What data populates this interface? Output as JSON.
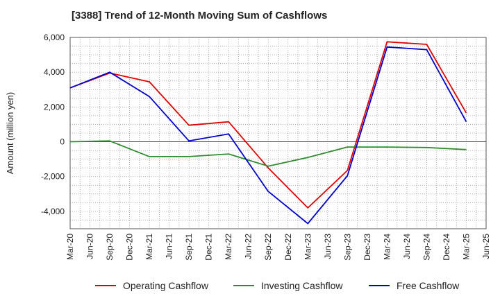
{
  "chart_data": {
    "type": "line",
    "title": "[3388]  Trend of 12-Month Moving Sum of Cashflows",
    "xlabel": "",
    "ylabel": "Amount (million yen)",
    "ylim": [
      -5000,
      6000
    ],
    "yticks": [
      -4000,
      -2000,
      0,
      2000,
      4000,
      6000
    ],
    "ytick_labels": [
      "-4,000",
      "-2,000",
      "0",
      "2,000",
      "4,000",
      "6,000"
    ],
    "categories": [
      "Mar-20",
      "Jun-20",
      "Sep-20",
      "Dec-20",
      "Mar-21",
      "Jun-21",
      "Sep-21",
      "Dec-21",
      "Mar-22",
      "Jun-22",
      "Sep-22",
      "Dec-22",
      "Mar-23",
      "Jun-23",
      "Sep-23",
      "Dec-23",
      "Mar-24",
      "Jun-24",
      "Sep-24",
      "Dec-24",
      "Mar-25",
      "Jun-25"
    ],
    "grid": true,
    "legend": "bottom",
    "series": [
      {
        "name": "Operating Cashflow",
        "color": "#e00000",
        "points": [
          {
            "x": "Mar-20",
            "y": 3100
          },
          {
            "x": "Sep-20",
            "y": 3950
          },
          {
            "x": "Mar-21",
            "y": 3450
          },
          {
            "x": "Sep-21",
            "y": 950
          },
          {
            "x": "Mar-22",
            "y": 1150
          },
          {
            "x": "Sep-22",
            "y": -1500
          },
          {
            "x": "Mar-23",
            "y": -3800
          },
          {
            "x": "Sep-23",
            "y": -1650
          },
          {
            "x": "Mar-24",
            "y": 5750
          },
          {
            "x": "Sep-24",
            "y": 5600
          },
          {
            "x": "Mar-25",
            "y": 1650
          }
        ]
      },
      {
        "name": "Investing Cashflow",
        "color": "#2e8b2e",
        "points": [
          {
            "x": "Mar-20",
            "y": 0
          },
          {
            "x": "Sep-20",
            "y": 50
          },
          {
            "x": "Mar-21",
            "y": -850
          },
          {
            "x": "Sep-21",
            "y": -850
          },
          {
            "x": "Mar-22",
            "y": -700
          },
          {
            "x": "Sep-22",
            "y": -1400
          },
          {
            "x": "Mar-23",
            "y": -900
          },
          {
            "x": "Sep-23",
            "y": -300
          },
          {
            "x": "Mar-24",
            "y": -300
          },
          {
            "x": "Sep-24",
            "y": -330
          },
          {
            "x": "Mar-25",
            "y": -450
          }
        ]
      },
      {
        "name": "Free Cashflow",
        "color": "#0000cc",
        "points": [
          {
            "x": "Mar-20",
            "y": 3100
          },
          {
            "x": "Sep-20",
            "y": 4000
          },
          {
            "x": "Mar-21",
            "y": 2600
          },
          {
            "x": "Sep-21",
            "y": 50
          },
          {
            "x": "Mar-22",
            "y": 450
          },
          {
            "x": "Sep-22",
            "y": -2850
          },
          {
            "x": "Mar-23",
            "y": -4700
          },
          {
            "x": "Sep-23",
            "y": -1950
          },
          {
            "x": "Mar-24",
            "y": 5450
          },
          {
            "x": "Sep-24",
            "y": 5300
          },
          {
            "x": "Mar-25",
            "y": 1150
          }
        ]
      }
    ]
  }
}
